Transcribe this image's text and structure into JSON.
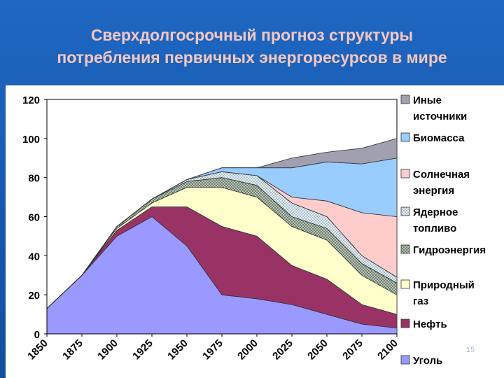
{
  "slide": {
    "title_line1": "Сверхдолгосрочный прогноз структуры",
    "title_line2": "потребления первичных энергоресурсов в мире",
    "page_number": "15"
  },
  "chart_data": {
    "type": "area",
    "stacked": true,
    "title": "Сверхдолгосрочный прогноз структуры потребления первичных энергоресурсов в мире",
    "xlabel": "",
    "ylabel": "",
    "x": [
      1850,
      1875,
      1900,
      1925,
      1950,
      1975,
      2000,
      2025,
      2050,
      2075,
      2100
    ],
    "x_ticks": [
      "1850",
      "1875",
      "1900",
      "1925",
      "1950",
      "1975",
      "2000",
      "2025",
      "2050",
      "2075",
      "2100"
    ],
    "ylim": [
      0,
      120
    ],
    "y_ticks": [
      0,
      20,
      40,
      60,
      80,
      100,
      120
    ],
    "grid": false,
    "legend_position": "right",
    "series": [
      {
        "name": "Уголь",
        "color": "#9999ff",
        "pattern": "solid",
        "values": [
          13,
          30,
          50,
          60,
          45,
          20,
          18,
          15,
          10,
          5,
          3
        ]
      },
      {
        "name": "Нефть",
        "color": "#993366",
        "pattern": "solid",
        "values": [
          0,
          0,
          3,
          5,
          20,
          35,
          32,
          20,
          18,
          10,
          7
        ]
      },
      {
        "name": "Природный газ",
        "color": "#ffffcc",
        "pattern": "solid",
        "values": [
          0,
          0,
          1,
          2,
          10,
          20,
          20,
          20,
          20,
          15,
          10
        ]
      },
      {
        "name": "Гидроэнергия",
        "color": "#a0b0a0",
        "pattern": "dots-dark",
        "values": [
          0,
          0,
          1,
          2,
          3,
          5,
          6,
          5,
          6,
          6,
          6
        ]
      },
      {
        "name": "Ядерное топливо",
        "color": "#d8e8f0",
        "pattern": "dots-light",
        "values": [
          0,
          0,
          0,
          0,
          1,
          3,
          5,
          7,
          6,
          4,
          3
        ]
      },
      {
        "name": "Солнечная энергия",
        "color": "#ffcccc",
        "pattern": "solid",
        "values": [
          0,
          0,
          0,
          0,
          0,
          0,
          0,
          3,
          8,
          22,
          31
        ]
      },
      {
        "name": "Биомасса",
        "color": "#99ccff",
        "pattern": "solid",
        "values": [
          0,
          0,
          0,
          0,
          0,
          2,
          4,
          15,
          20,
          25,
          30
        ]
      },
      {
        "name": "Иные источники",
        "color": "#a0a0b0",
        "pattern": "solid",
        "values": [
          0,
          0,
          0,
          0,
          0,
          0,
          0,
          5,
          5,
          8,
          10
        ]
      }
    ],
    "legend_order": [
      "Иные источники",
      "Биомасса",
      "Солнечная энергия",
      "Ядерное топливо",
      "Гидроэнергия",
      "Природный газ",
      "Нефть",
      "Уголь"
    ],
    "legend_labels": {
      "Иные источники": [
        "Иные",
        "источники"
      ],
      "Биомасса": [
        "Биомасса"
      ],
      "Солнечная энергия": [
        "Солнечная",
        "энергия"
      ],
      "Ядерное топливо": [
        "Ядерное",
        "топливо"
      ],
      "Гидроэнергия": [
        "Гидроэнергия"
      ],
      "Природный газ": [
        "Природный",
        "газ"
      ],
      "Нефть": [
        "Нефть"
      ],
      "Уголь": [
        "Уголь"
      ]
    }
  }
}
